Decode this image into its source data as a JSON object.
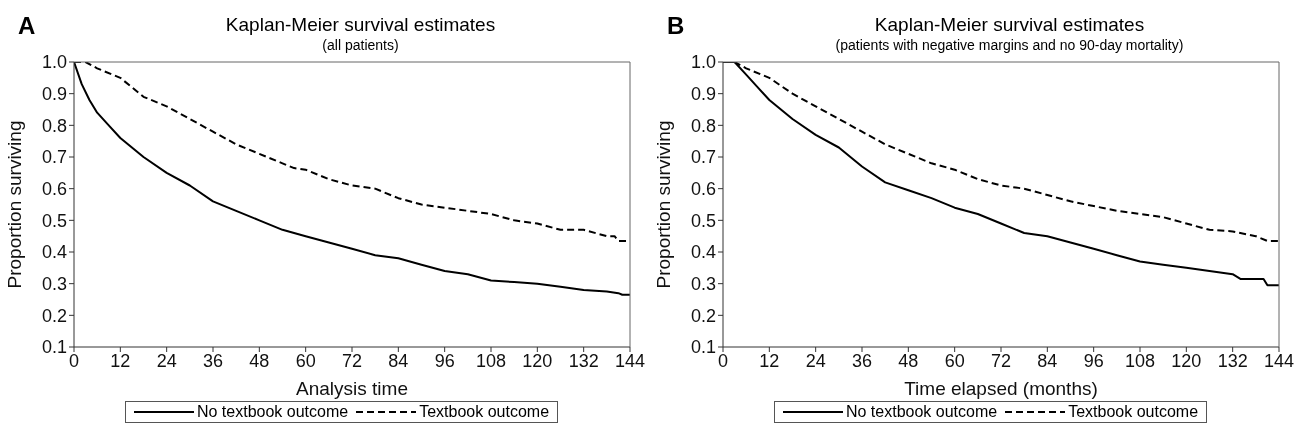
{
  "chart_data": [
    {
      "type": "line",
      "title": "Kaplan-Meier survival estimates",
      "subtitle": "(all patients)",
      "xlabel": "Analysis time",
      "ylabel": "Proportion surviving",
      "annotations": [
        "A"
      ],
      "xlim": [
        0,
        144
      ],
      "xticks": [
        0,
        12,
        24,
        36,
        48,
        60,
        72,
        84,
        96,
        108,
        120,
        132,
        144
      ],
      "ylim": [
        0.1,
        1
      ],
      "yticks": [
        0.1,
        0.2,
        0.3,
        0.4,
        0.5,
        0.6,
        0.7,
        0.8,
        0.9,
        {
          "value": 1,
          "label": "1.0"
        }
      ],
      "grid": false,
      "legend": "bottom",
      "marker": "none",
      "series": [
        {
          "name": "No textbook outcome",
          "color": "#000000",
          "line_style": "solid",
          "x": [
            0,
            2,
            4,
            6,
            9,
            12,
            18,
            24,
            30,
            36,
            42,
            48,
            54,
            60,
            66,
            72,
            78,
            84,
            90,
            96,
            102,
            108,
            114,
            120,
            126,
            132,
            138,
            141,
            142,
            144
          ],
          "values": [
            1.0,
            0.93,
            0.88,
            0.84,
            0.8,
            0.76,
            0.7,
            0.65,
            0.61,
            0.56,
            0.53,
            0.5,
            0.47,
            0.45,
            0.43,
            0.41,
            0.39,
            0.38,
            0.36,
            0.34,
            0.33,
            0.31,
            0.305,
            0.3,
            0.29,
            0.28,
            0.275,
            0.27,
            0.265,
            0.265
          ]
        },
        {
          "name": "Textbook outcome",
          "color": "#000000",
          "line_style": "dashed",
          "x": [
            0,
            3,
            6,
            12,
            18,
            24,
            30,
            36,
            42,
            48,
            54,
            57,
            60,
            66,
            72,
            78,
            84,
            90,
            96,
            102,
            108,
            114,
            120,
            126,
            132,
            138,
            140,
            141,
            144
          ],
          "values": [
            1.0,
            1.0,
            0.98,
            0.95,
            0.89,
            0.86,
            0.82,
            0.78,
            0.74,
            0.71,
            0.68,
            0.665,
            0.66,
            0.63,
            0.61,
            0.6,
            0.57,
            0.55,
            0.54,
            0.53,
            0.52,
            0.5,
            0.49,
            0.47,
            0.47,
            0.45,
            0.45,
            0.435,
            0.435
          ]
        }
      ]
    },
    {
      "type": "line",
      "title": "Kaplan-Meier survival estimates",
      "subtitle": "(patients with negative margins and no 90-day mortality)",
      "xlabel": "Time elapsed (months)",
      "ylabel": "Proportion surviving",
      "annotations": [
        "B"
      ],
      "xlim": [
        0,
        144
      ],
      "xticks": [
        0,
        12,
        24,
        36,
        48,
        60,
        72,
        84,
        96,
        108,
        120,
        132,
        144
      ],
      "ylim": [
        0.1,
        1
      ],
      "yticks": [
        0.1,
        0.2,
        0.3,
        0.4,
        0.5,
        0.6,
        0.7,
        0.8,
        0.9,
        {
          "value": 1,
          "label": "1.0"
        }
      ],
      "grid": false,
      "legend": "bottom",
      "marker": "none",
      "series": [
        {
          "name": "No textbook outcome",
          "color": "#000000",
          "line_style": "solid",
          "x": [
            0,
            3,
            6,
            9,
            12,
            18,
            24,
            30,
            36,
            42,
            48,
            54,
            60,
            66,
            72,
            78,
            84,
            90,
            96,
            102,
            108,
            114,
            120,
            126,
            132,
            134,
            140,
            141,
            144
          ],
          "values": [
            1.0,
            1.0,
            0.96,
            0.92,
            0.88,
            0.82,
            0.77,
            0.73,
            0.67,
            0.62,
            0.595,
            0.57,
            0.54,
            0.52,
            0.49,
            0.46,
            0.45,
            0.43,
            0.41,
            0.39,
            0.37,
            0.36,
            0.35,
            0.34,
            0.33,
            0.315,
            0.315,
            0.295,
            0.295
          ]
        },
        {
          "name": "Textbook outcome",
          "color": "#000000",
          "line_style": "dashed",
          "x": [
            0,
            3,
            6,
            12,
            18,
            24,
            30,
            36,
            42,
            48,
            54,
            60,
            66,
            72,
            78,
            84,
            90,
            96,
            102,
            108,
            114,
            120,
            126,
            132,
            138,
            141,
            144
          ],
          "values": [
            1.0,
            1.0,
            0.98,
            0.95,
            0.9,
            0.86,
            0.82,
            0.78,
            0.74,
            0.71,
            0.68,
            0.66,
            0.63,
            0.61,
            0.6,
            0.58,
            0.56,
            0.545,
            0.53,
            0.52,
            0.51,
            0.49,
            0.47,
            0.465,
            0.45,
            0.435,
            0.435
          ]
        }
      ]
    }
  ]
}
